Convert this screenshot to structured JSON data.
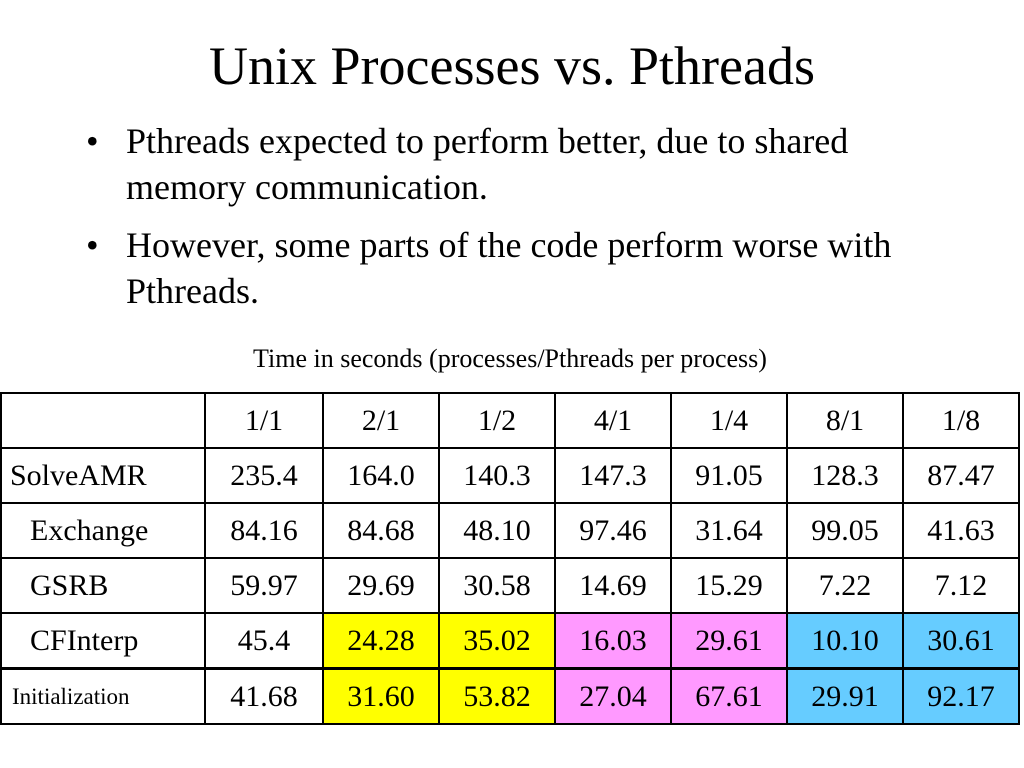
{
  "title": "Unix Processes vs. Pthreads",
  "bullets": [
    "Pthreads expected to perform better, due to shared memory communication.",
    "However, some parts of the code perform worse with Pthreads."
  ],
  "bullet_symbol": "•",
  "table": {
    "caption": "Time in seconds (processes/Pthreads per process)",
    "corner": "",
    "columns": [
      "1/1",
      "2/1",
      "1/2",
      "4/1",
      "1/4",
      "8/1",
      "1/8"
    ],
    "rows": [
      {
        "label": "SolveAMR",
        "values": [
          "235.4",
          "164.0",
          "140.3",
          "147.3",
          "91.05",
          "128.3",
          "87.47"
        ]
      },
      {
        "label": "Exchange",
        "values": [
          "84.16",
          "84.68",
          "48.10",
          "97.46",
          "31.64",
          "99.05",
          "41.63"
        ]
      },
      {
        "label": "GSRB",
        "values": [
          "59.97",
          "29.69",
          "30.58",
          "14.69",
          "15.29",
          "7.22",
          "7.12"
        ]
      },
      {
        "label": "CFInterp",
        "values": [
          "45.4",
          "24.28",
          "35.02",
          "16.03",
          "29.61",
          "10.10",
          "30.61"
        ]
      },
      {
        "label": "Initialization",
        "values": [
          "41.68",
          "31.60",
          "53.82",
          "27.04",
          "67.61",
          "29.91",
          "92.17"
        ]
      }
    ]
  },
  "highlight_colors": {
    "pair_2": "#ffff00",
    "pair_4": "#ff99ff",
    "pair_8": "#66ccff"
  }
}
